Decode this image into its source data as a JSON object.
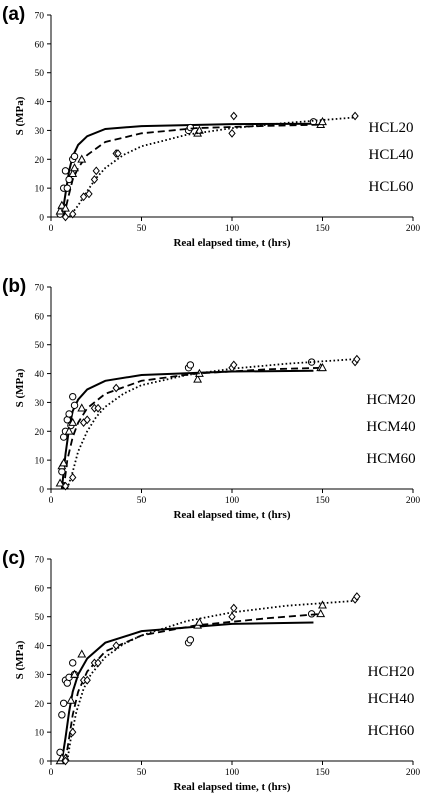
{
  "chart_data": [
    {
      "type": "scatter",
      "panel_label": "(a)",
      "xlabel": "Real elapsed time, t (hrs)",
      "ylabel": "S (MPa)",
      "xlim": [
        0,
        200
      ],
      "ylim": [
        0,
        70
      ],
      "xticks": [
        0,
        50,
        100,
        150,
        200
      ],
      "yticks": [
        0,
        10,
        20,
        30,
        40,
        50,
        60,
        70
      ],
      "grid": false,
      "series": [
        {
          "name": "HCL20",
          "marker": "circle",
          "line_style": "solid",
          "points": [
            [
              5,
              1
            ],
            [
              6,
              3
            ],
            [
              7,
              10
            ],
            [
              8,
              16
            ],
            [
              9,
              10
            ],
            [
              10,
              13
            ],
            [
              12,
              20
            ],
            [
              13,
              21
            ],
            [
              76,
              30
            ],
            [
              77,
              31
            ],
            [
              145,
              33
            ]
          ],
          "fit": [
            [
              6,
              0
            ],
            [
              8,
              8
            ],
            [
              10,
              16
            ],
            [
              12,
              21
            ],
            [
              15,
              25
            ],
            [
              20,
              28
            ],
            [
              30,
              30.5
            ],
            [
              50,
              31.5
            ],
            [
              100,
              32.2
            ],
            [
              145,
              32.3
            ]
          ]
        },
        {
          "name": "HCL40",
          "marker": "triangle",
          "line_style": "dashed",
          "points": [
            [
              5,
              2
            ],
            [
              6,
              4
            ],
            [
              8,
              3
            ],
            [
              12,
              15
            ],
            [
              13,
              17
            ],
            [
              17,
              20
            ],
            [
              81,
              29
            ],
            [
              82,
              30
            ],
            [
              149,
              32
            ],
            [
              150,
              33
            ]
          ],
          "fit": [
            [
              7,
              0
            ],
            [
              10,
              8
            ],
            [
              12,
              13
            ],
            [
              15,
              17
            ],
            [
              20,
              21.5
            ],
            [
              30,
              26
            ],
            [
              50,
              29
            ],
            [
              80,
              30.8
            ],
            [
              120,
              31.6
            ],
            [
              150,
              32
            ]
          ]
        },
        {
          "name": "HCL60",
          "marker": "diamond",
          "line_style": "dotted",
          "points": [
            [
              8,
              0
            ],
            [
              12,
              1
            ],
            [
              18,
              7
            ],
            [
              21,
              8
            ],
            [
              24,
              13
            ],
            [
              25,
              16
            ],
            [
              36,
              22
            ],
            [
              37,
              22
            ],
            [
              100,
              29
            ],
            [
              101,
              35
            ],
            [
              168,
              35
            ]
          ],
          "fit": [
            [
              10,
              0
            ],
            [
              15,
              4
            ],
            [
              20,
              9
            ],
            [
              25,
              13.5
            ],
            [
              30,
              17
            ],
            [
              40,
              21.5
            ],
            [
              50,
              24.5
            ],
            [
              75,
              28.5
            ],
            [
              100,
              30.8
            ],
            [
              130,
              32.6
            ],
            [
              168,
              34.5
            ]
          ]
        }
      ]
    },
    {
      "type": "scatter",
      "panel_label": "(b)",
      "xlabel": "Real elapsed time, t (hrs)",
      "ylabel": "S (MPa)",
      "xlim": [
        0,
        200
      ],
      "ylim": [
        0,
        70
      ],
      "xticks": [
        0,
        50,
        100,
        150,
        200
      ],
      "yticks": [
        0,
        10,
        20,
        30,
        40,
        50,
        60,
        70
      ],
      "grid": false,
      "series": [
        {
          "name": "HCM20",
          "marker": "circle",
          "line_style": "solid",
          "points": [
            [
              6,
              6
            ],
            [
              7,
              18
            ],
            [
              8,
              20
            ],
            [
              9,
              24
            ],
            [
              10,
              26
            ],
            [
              11,
              22
            ],
            [
              12,
              32
            ],
            [
              13,
              29
            ],
            [
              76,
              42
            ],
            [
              77,
              43
            ],
            [
              144,
              44
            ]
          ],
          "fit": [
            [
              6,
              0
            ],
            [
              8,
              12
            ],
            [
              10,
              21
            ],
            [
              12,
              27
            ],
            [
              15,
              31
            ],
            [
              20,
              34.5
            ],
            [
              30,
              37.5
            ],
            [
              50,
              39.5
            ],
            [
              100,
              40.7
            ],
            [
              145,
              41
            ]
          ]
        },
        {
          "name": "HCM40",
          "marker": "triangle",
          "line_style": "dashed",
          "points": [
            [
              5,
              2
            ],
            [
              6,
              8
            ],
            [
              7,
              9
            ],
            [
              10,
              20
            ],
            [
              12,
              23
            ],
            [
              17,
              28
            ],
            [
              81,
              38
            ],
            [
              82,
              40
            ],
            [
              149,
              42
            ],
            [
              150,
              42
            ]
          ],
          "fit": [
            [
              7,
              0
            ],
            [
              9,
              10
            ],
            [
              12,
              18
            ],
            [
              15,
              23
            ],
            [
              20,
              28
            ],
            [
              30,
              33
            ],
            [
              50,
              37.5
            ],
            [
              80,
              40
            ],
            [
              120,
              41.5
            ],
            [
              150,
              42
            ]
          ]
        },
        {
          "name": "HCM60",
          "marker": "diamond",
          "line_style": "dotted",
          "points": [
            [
              8,
              1
            ],
            [
              12,
              4
            ],
            [
              18,
              23
            ],
            [
              20,
              24
            ],
            [
              24,
              28
            ],
            [
              26,
              28
            ],
            [
              36,
              35
            ],
            [
              100,
              42
            ],
            [
              101,
              43
            ],
            [
              168,
              44
            ],
            [
              169,
              45
            ]
          ],
          "fit": [
            [
              9,
              0
            ],
            [
              12,
              6
            ],
            [
              15,
              13
            ],
            [
              20,
              20
            ],
            [
              25,
              25
            ],
            [
              30,
              28.5
            ],
            [
              40,
              33
            ],
            [
              50,
              36
            ],
            [
              75,
              39.5
            ],
            [
              100,
              41.7
            ],
            [
              130,
              43.4
            ],
            [
              168,
              45
            ]
          ]
        }
      ]
    },
    {
      "type": "scatter",
      "panel_label": "(c)",
      "xlabel": "Real elapsed time, t (hrs)",
      "ylabel": "S (MPa)",
      "xlim": [
        0,
        200
      ],
      "ylim": [
        0,
        70
      ],
      "xticks": [
        0,
        50,
        100,
        150,
        200
      ],
      "yticks": [
        0,
        10,
        20,
        30,
        40,
        50,
        60,
        70
      ],
      "grid": false,
      "series": [
        {
          "name": "HCH20",
          "marker": "circle",
          "line_style": "solid",
          "points": [
            [
              5,
              3
            ],
            [
              6,
              16
            ],
            [
              7,
              20
            ],
            [
              8,
              28
            ],
            [
              9,
              27
            ],
            [
              10,
              29
            ],
            [
              12,
              34
            ],
            [
              13,
              30
            ],
            [
              76,
              41
            ],
            [
              77,
              42
            ],
            [
              144,
              51
            ]
          ],
          "fit": [
            [
              6,
              0
            ],
            [
              8,
              8
            ],
            [
              10,
              17
            ],
            [
              12,
              24
            ],
            [
              15,
              30
            ],
            [
              20,
              35.5
            ],
            [
              30,
              41
            ],
            [
              50,
              45
            ],
            [
              100,
              47.5
            ],
            [
              145,
              48
            ]
          ]
        },
        {
          "name": "HCH40",
          "marker": "triangle",
          "line_style": "dashed",
          "points": [
            [
              5,
              0
            ],
            [
              6,
              1
            ],
            [
              8,
              1
            ],
            [
              11,
              21
            ],
            [
              13,
              30
            ],
            [
              17,
              37
            ],
            [
              81,
              47
            ],
            [
              82,
              48
            ],
            [
              149,
              51
            ],
            [
              150,
              54
            ]
          ],
          "fit": [
            [
              8,
              0
            ],
            [
              10,
              8
            ],
            [
              12,
              16
            ],
            [
              15,
              24
            ],
            [
              20,
              31
            ],
            [
              30,
              38
            ],
            [
              50,
              43.5
            ],
            [
              80,
              47
            ],
            [
              120,
              49.5
            ],
            [
              150,
              51
            ]
          ]
        },
        {
          "name": "HCH60",
          "marker": "diamond",
          "line_style": "dotted",
          "points": [
            [
              8,
              0
            ],
            [
              12,
              10
            ],
            [
              18,
              28
            ],
            [
              20,
              28
            ],
            [
              24,
              34
            ],
            [
              26,
              34
            ],
            [
              36,
              40
            ],
            [
              100,
              50
            ],
            [
              101,
              53
            ],
            [
              168,
              56
            ],
            [
              169,
              57
            ]
          ],
          "fit": [
            [
              9,
              0
            ],
            [
              11,
              8
            ],
            [
              14,
              17
            ],
            [
              18,
              25
            ],
            [
              22,
              30
            ],
            [
              30,
              36
            ],
            [
              40,
              40.5
            ],
            [
              50,
              43.5
            ],
            [
              75,
              48.5
            ],
            [
              100,
              51.5
            ],
            [
              130,
              53.8
            ],
            [
              168,
              55.5
            ]
          ]
        }
      ]
    }
  ]
}
